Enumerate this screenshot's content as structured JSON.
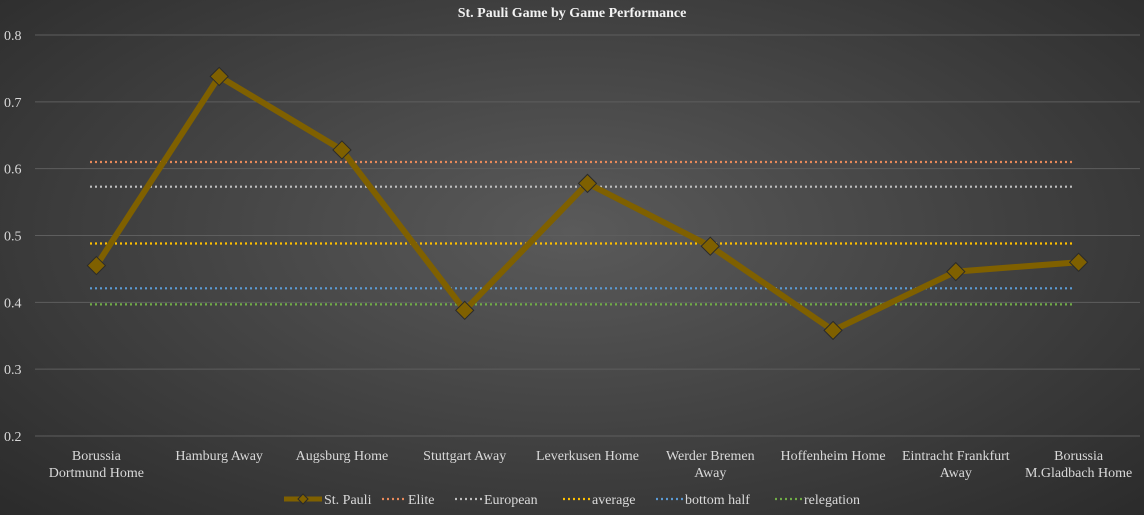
{
  "chart_data": {
    "type": "line",
    "title": "St. Pauli Game by Game Performance",
    "categories": [
      [
        "Borussia",
        "Dortmund Home"
      ],
      [
        "Hamburg Away"
      ],
      [
        "Augsburg Home"
      ],
      [
        "Stuttgart Away"
      ],
      [
        "Leverkusen Home"
      ],
      [
        "Werder Bremen",
        "Away"
      ],
      [
        "Hoffenheim Home"
      ],
      [
        "Eintracht Frankfurt",
        "Away"
      ],
      [
        "Borussia",
        "M.Gladbach Home"
      ]
    ],
    "ylim": [
      0.2,
      0.8
    ],
    "yticks": [
      "0.2",
      "0.3",
      "0.4",
      "0.5",
      "0.6",
      "0.7",
      "0.8"
    ],
    "grid": true,
    "legend_position": "bottom",
    "series": [
      {
        "name": "St. Pauli",
        "values": [
          0.455,
          0.738,
          0.628,
          0.388,
          0.578,
          0.484,
          0.358,
          0.446,
          0.46
        ],
        "color": "#7f6000",
        "marker": "diamond",
        "style": "solid"
      },
      {
        "name": "Elite",
        "values": [
          0.61,
          0.61,
          0.61,
          0.61,
          0.61,
          0.61,
          0.61,
          0.61,
          0.61
        ],
        "color": "#e8895a",
        "style": "dotted"
      },
      {
        "name": "European",
        "values": [
          0.573,
          0.573,
          0.573,
          0.573,
          0.573,
          0.573,
          0.573,
          0.573,
          0.573
        ],
        "color": "#bfbfbf",
        "style": "dotted"
      },
      {
        "name": "average",
        "values": [
          0.488,
          0.488,
          0.488,
          0.488,
          0.488,
          0.488,
          0.488,
          0.488,
          0.488
        ],
        "color": "#ffc000",
        "style": "dotted"
      },
      {
        "name": "bottom half",
        "values": [
          0.421,
          0.421,
          0.421,
          0.421,
          0.421,
          0.421,
          0.421,
          0.421,
          0.421
        ],
        "color": "#5b9bd5",
        "style": "dotted"
      },
      {
        "name": "relegation",
        "values": [
          0.397,
          0.397,
          0.397,
          0.397,
          0.397,
          0.397,
          0.397,
          0.397,
          0.397
        ],
        "color": "#70ad47",
        "style": "dotted"
      }
    ]
  }
}
